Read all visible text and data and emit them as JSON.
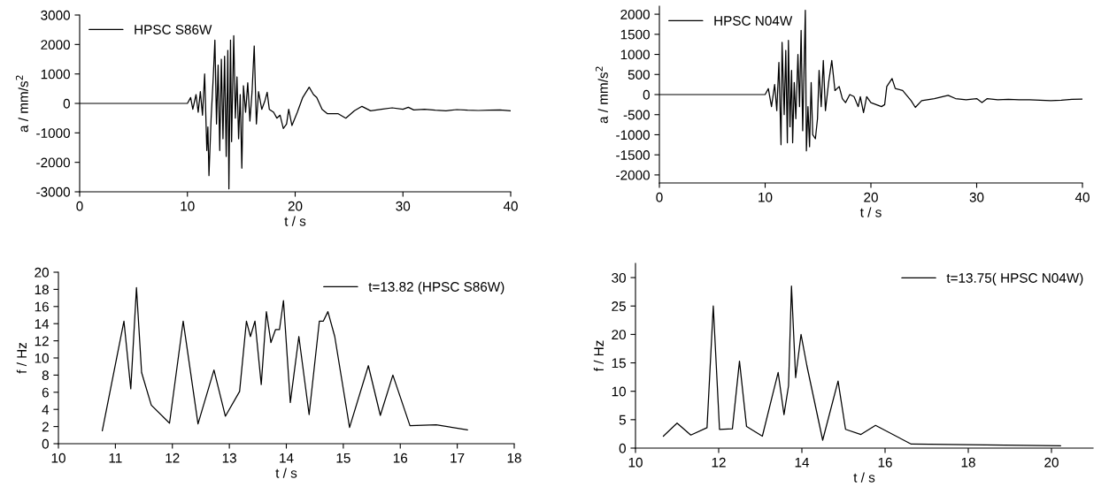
{
  "chart_data": [
    {
      "type": "line",
      "xlabel": "t / s",
      "ylabel": "a / mm/s$^{2}$",
      "xlim": [
        0,
        40
      ],
      "xticks": [
        0,
        10,
        20,
        30,
        40
      ],
      "ylim": [
        -3000,
        3000
      ],
      "yticks": [
        -3000,
        -2000,
        -1000,
        0,
        1000,
        2000,
        3000
      ],
      "legend": "top left",
      "grid": false,
      "series": [
        {
          "name": "HPSC S86W",
          "color": "#000000",
          "x": [
            0,
            10,
            10.3,
            10.5,
            10.8,
            11,
            11.2,
            11.4,
            11.6,
            11.8,
            11.9,
            12.0,
            12.2,
            12.4,
            12.55,
            12.7,
            12.85,
            13.0,
            13.15,
            13.3,
            13.45,
            13.6,
            13.75,
            13.85,
            14.0,
            14.1,
            14.3,
            14.45,
            14.6,
            14.75,
            14.9,
            15.05,
            15.2,
            15.4,
            15.6,
            15.8,
            16.0,
            16.2,
            16.4,
            16.6,
            16.9,
            17.2,
            17.4,
            17.6,
            18.0,
            18.3,
            18.6,
            18.9,
            19.2,
            19.4,
            19.7,
            20.2,
            20.7,
            21.3,
            21.7,
            22.0,
            22.5,
            23,
            24,
            24.7,
            25.5,
            26.2,
            27,
            28,
            29,
            30,
            30.5,
            31,
            32,
            33,
            34,
            35,
            36,
            37,
            38,
            39,
            40
          ],
          "values": [
            0,
            0,
            200,
            -200,
            300,
            -300,
            400,
            -400,
            1000,
            -1600,
            -800,
            -2450,
            -500,
            900,
            2150,
            -700,
            1300,
            -1600,
            1500,
            -1200,
            1600,
            -1800,
            1800,
            -2900,
            2150,
            -1300,
            2300,
            -500,
            900,
            -1200,
            300,
            -2200,
            600,
            -300,
            700,
            -600,
            400,
            1950,
            -700,
            400,
            -200,
            100,
            380,
            -200,
            -300,
            -500,
            -400,
            -850,
            -700,
            -200,
            -750,
            -300,
            200,
            550,
            300,
            200,
            -200,
            -350,
            -350,
            -500,
            -250,
            -100,
            -250,
            -200,
            -150,
            -200,
            -130,
            -220,
            -200,
            -230,
            -250,
            -210,
            -230,
            -240,
            -230,
            -220,
            -250
          ]
        }
      ]
    },
    {
      "type": "line",
      "xlabel": "t / s",
      "ylabel": "a / mm/s$^{2}$",
      "xlim": [
        0,
        40
      ],
      "xticks": [
        0,
        10,
        20,
        30,
        40
      ],
      "ylim": [
        -2200,
        2200
      ],
      "yticks": [
        -2000,
        -1500,
        -1000,
        -500,
        0,
        500,
        1000,
        1500,
        2000
      ],
      "legend": "top left",
      "grid": false,
      "series": [
        {
          "name": "HPSC N04W",
          "color": "#000000",
          "x": [
            0,
            10,
            10.3,
            10.6,
            10.9,
            11.1,
            11.3,
            11.5,
            11.6,
            11.8,
            11.95,
            12.1,
            12.2,
            12.35,
            12.5,
            12.6,
            12.75,
            12.9,
            13.1,
            13.25,
            13.4,
            13.55,
            13.7,
            13.8,
            13.9,
            14.05,
            14.2,
            14.35,
            14.5,
            14.75,
            14.95,
            15.1,
            15.3,
            15.5,
            15.7,
            16.0,
            16.3,
            16.6,
            17,
            17.3,
            17.6,
            18,
            18.4,
            18.8,
            19.0,
            19.3,
            19.6,
            20,
            20.5,
            21,
            21.3,
            21.5,
            22.0,
            22.3,
            23,
            23.8,
            24.2,
            24.8,
            26,
            27.3,
            28,
            29,
            30,
            30.5,
            31,
            32,
            33,
            34,
            35,
            36,
            37,
            38,
            39,
            40
          ],
          "values": [
            0,
            0,
            150,
            -300,
            250,
            -400,
            800,
            -1250,
            1300,
            -500,
            1100,
            -1200,
            1350,
            -800,
            600,
            -1200,
            300,
            -600,
            1000,
            -300,
            1600,
            -900,
            900,
            2100,
            -1400,
            -300,
            -1300,
            300,
            -1000,
            -1100,
            -600,
            600,
            -300,
            850,
            -400,
            300,
            850,
            100,
            200,
            -100,
            -200,
            0,
            -50,
            -300,
            -50,
            -450,
            -50,
            -200,
            -250,
            -300,
            -250,
            200,
            400,
            150,
            100,
            -150,
            -320,
            -150,
            -100,
            -20,
            -100,
            -130,
            -100,
            -200,
            -100,
            -130,
            -120,
            -130,
            -130,
            -140,
            -150,
            -140,
            -120,
            -110
          ]
        }
      ]
    },
    {
      "type": "line",
      "xlabel": "t / s",
      "ylabel": "f / Hz",
      "xlim": [
        10,
        18
      ],
      "xticks": [
        10,
        11,
        12,
        13,
        14,
        15,
        16,
        17,
        18
      ],
      "ylim": [
        0,
        20
      ],
      "yticks": [
        0,
        2,
        4,
        6,
        8,
        10,
        12,
        14,
        16,
        18,
        20
      ],
      "legend": "top right",
      "grid": false,
      "series": [
        {
          "name": "t=13.82 (HPSC S86W)",
          "color": "#000000",
          "x": [
            10.77,
            11.15,
            11.27,
            11.37,
            11.46,
            11.63,
            11.95,
            12.19,
            12.45,
            12.73,
            12.93,
            13.18,
            13.3,
            13.37,
            13.45,
            13.56,
            13.65,
            13.73,
            13.81,
            13.88,
            13.95,
            14.07,
            14.22,
            14.4,
            14.58,
            14.65,
            14.73,
            14.85,
            15.11,
            15.44,
            15.65,
            15.87,
            16.17,
            16.63,
            17.18
          ],
          "values": [
            1.5,
            14.3,
            6.4,
            18.2,
            8.3,
            4.5,
            2.4,
            14.3,
            2.3,
            8.6,
            3.2,
            6.1,
            14.3,
            12.5,
            14.3,
            6.9,
            15.4,
            11.8,
            13.3,
            13.3,
            16.7,
            4.8,
            12.5,
            3.4,
            14.3,
            14.3,
            15.4,
            12.5,
            1.9,
            9.1,
            3.3,
            8.0,
            2.1,
            2.2,
            1.6
          ]
        }
      ]
    },
    {
      "type": "line",
      "xlabel": "t / s",
      "ylabel": "f / Hz",
      "xlim": [
        10,
        21
      ],
      "xticks": [
        10,
        12,
        14,
        16,
        18,
        20
      ],
      "ylim": [
        0,
        32.5
      ],
      "yticks": [
        0,
        5,
        10,
        15,
        20,
        25,
        30
      ],
      "legend": "top right",
      "grid": false,
      "series": [
        {
          "name": "t=13.75( HPSC N04W)",
          "color": "#000000",
          "x": [
            10.67,
            11.0,
            11.33,
            11.72,
            11.87,
            12.02,
            12.33,
            12.5,
            12.67,
            13.05,
            13.3,
            13.43,
            13.57,
            13.68,
            13.75,
            13.85,
            13.98,
            14.12,
            14.5,
            14.87,
            15.05,
            15.42,
            15.77,
            16.63,
            20.22
          ],
          "values": [
            2.1,
            4.4,
            2.3,
            3.6,
            25,
            3.3,
            3.4,
            15.3,
            3.8,
            2.1,
            9.5,
            13.3,
            5.9,
            11,
            28.5,
            12.4,
            20,
            14.5,
            1.4,
            11.8,
            3.3,
            2.4,
            4.0,
            0.7,
            0.4
          ]
        }
      ]
    }
  ]
}
